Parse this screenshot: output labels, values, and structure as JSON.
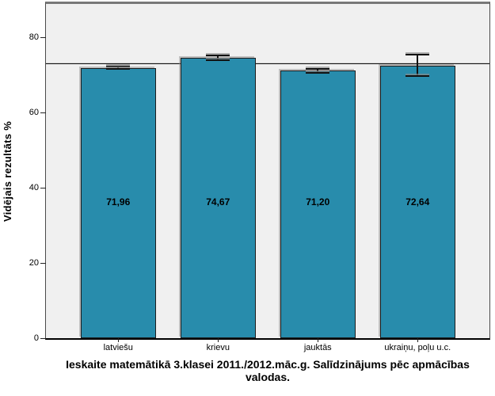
{
  "chart_data": {
    "type": "bar",
    "categories": [
      "latviešu",
      "krievu",
      "jauktās",
      "ukraiņu, poļu u.c."
    ],
    "values": [
      71.96,
      74.67,
      71.2,
      72.64
    ],
    "value_labels": [
      "71,96",
      "74,67",
      "71,20",
      "72,64"
    ],
    "error_bars": [
      0.5,
      0.8,
      0.8,
      3.1
    ],
    "title": "Ieskaite matemātikā 3.klasei 2011./2012.māc.g. Salīdzinājums pēc apmācības valodas.",
    "title_lines": [
      "Ieskaite matemātikā 3.klasei 2011./2012.māc.g. Salīdzinājums pēc apmācības",
      "valodas."
    ],
    "ylabel": "Vidējais rezultāts %",
    "yticks": [
      "0",
      "20",
      "40",
      "60",
      "80"
    ],
    "ylim": [
      0,
      89
    ],
    "reference_line": 72.9,
    "legend": "none",
    "grid": "off",
    "bar_color": "#288cac",
    "bar_border_color": "#1c1c1c",
    "plot_background": "#f0f0f0",
    "figure_background": "#ffffff"
  }
}
